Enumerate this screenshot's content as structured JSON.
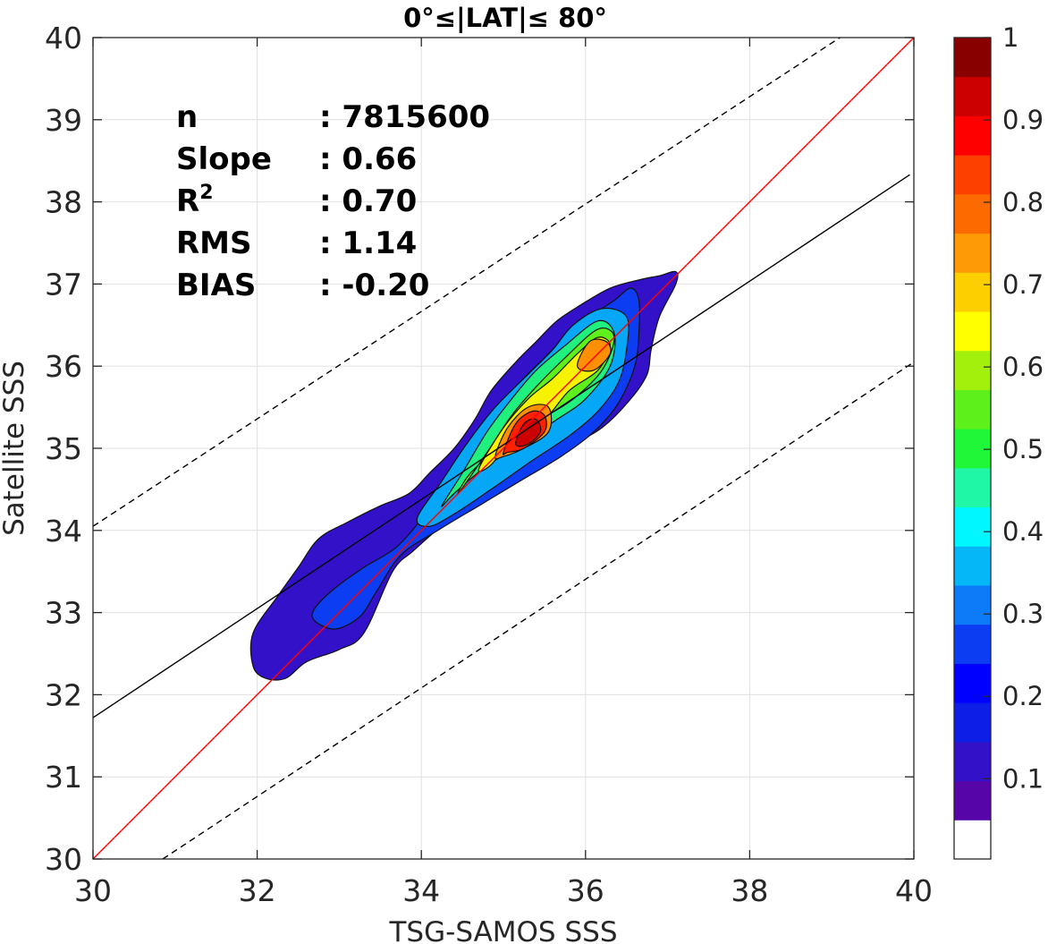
{
  "chart_data": {
    "type": "contour",
    "title": "0°≤|LAT|≤ 80°",
    "xlabel": "TSG-SAMOS SSS",
    "ylabel": "Satellite SSS",
    "xlim": [
      30,
      40
    ],
    "ylim": [
      30,
      40
    ],
    "xticks": [
      "30",
      "32",
      "34",
      "36",
      "38",
      "40"
    ],
    "yticks": [
      "30",
      "31",
      "32",
      "33",
      "34",
      "35",
      "36",
      "37",
      "38",
      "39",
      "40"
    ],
    "grid": true,
    "stats": [
      {
        "label": "n",
        "value": ": 7815600"
      },
      {
        "label": "Slope",
        "value": ": 0.66"
      },
      {
        "label": "R",
        "sup": "2",
        "value": ": 0.70"
      },
      {
        "label": "RMS",
        "value": ": 1.14"
      },
      {
        "label": "BIAS",
        "value": ": -0.20"
      }
    ],
    "lines": {
      "one_to_one": {
        "x": [
          30,
          40
        ],
        "y": [
          30,
          40
        ],
        "color": "#ff0000"
      },
      "fit": {
        "x": [
          30,
          39.95
        ],
        "y": [
          31.72,
          38.33
        ],
        "color": "#000000"
      },
      "plus_offset": {
        "x": [
          30,
          39.1
        ],
        "y": [
          34.05,
          40
        ],
        "color": "#000000",
        "style": "dashed"
      },
      "minus_offset": {
        "x": [
          30.85,
          40
        ],
        "y": [
          30,
          36.05
        ],
        "color": "#000000",
        "style": "dashed"
      }
    },
    "contour_levels": [
      {
        "level": 0.05,
        "color": "#3211c8",
        "points": [
          [
            31.95,
            32.35
          ],
          [
            31.95,
            32.75
          ],
          [
            32.25,
            33.2
          ],
          [
            32.5,
            33.55
          ],
          [
            32.75,
            33.9
          ],
          [
            33.1,
            34.1
          ],
          [
            33.5,
            34.3
          ],
          [
            33.85,
            34.45
          ],
          [
            34.1,
            34.7
          ],
          [
            34.4,
            35.0
          ],
          [
            34.65,
            35.35
          ],
          [
            34.85,
            35.7
          ],
          [
            35.15,
            36.05
          ],
          [
            35.4,
            36.3
          ],
          [
            35.65,
            36.55
          ],
          [
            35.95,
            36.75
          ],
          [
            36.3,
            36.95
          ],
          [
            36.65,
            37.05
          ],
          [
            36.9,
            37.1
          ],
          [
            37.1,
            37.15
          ],
          [
            37.1,
            37.0
          ],
          [
            36.9,
            36.6
          ],
          [
            36.8,
            36.2
          ],
          [
            36.75,
            35.9
          ],
          [
            36.55,
            35.6
          ],
          [
            36.2,
            35.25
          ],
          [
            35.75,
            35.0
          ],
          [
            35.25,
            34.75
          ],
          [
            34.75,
            34.45
          ],
          [
            34.3,
            34.1
          ],
          [
            33.9,
            33.75
          ],
          [
            33.65,
            33.5
          ],
          [
            33.3,
            32.75
          ],
          [
            33.0,
            32.55
          ],
          [
            32.6,
            32.4
          ],
          [
            32.35,
            32.2
          ],
          [
            32.1,
            32.2
          ]
        ]
      },
      {
        "level": 0.15,
        "color": "#0d3df2",
        "points": [
          [
            32.7,
            33.05
          ],
          [
            32.95,
            33.3
          ],
          [
            33.3,
            33.55
          ],
          [
            33.7,
            33.8
          ],
          [
            34.05,
            34.2
          ],
          [
            34.35,
            34.6
          ],
          [
            34.6,
            34.95
          ],
          [
            34.9,
            35.4
          ],
          [
            35.2,
            35.8
          ],
          [
            35.5,
            36.1
          ],
          [
            35.8,
            36.4
          ],
          [
            36.05,
            36.6
          ],
          [
            36.35,
            36.8
          ],
          [
            36.55,
            36.95
          ],
          [
            36.65,
            36.8
          ],
          [
            36.65,
            36.4
          ],
          [
            36.6,
            36.0
          ],
          [
            36.4,
            35.55
          ],
          [
            36.1,
            35.2
          ],
          [
            35.7,
            34.9
          ],
          [
            35.2,
            34.6
          ],
          [
            34.7,
            34.3
          ],
          [
            34.2,
            34.0
          ],
          [
            33.75,
            33.7
          ],
          [
            33.45,
            33.25
          ],
          [
            33.25,
            32.95
          ],
          [
            32.95,
            32.8
          ],
          [
            32.7,
            32.9
          ]
        ]
      },
      {
        "level": 0.3,
        "color": "#06a7f7",
        "points": [
          [
            33.95,
            34.15
          ],
          [
            34.25,
            34.6
          ],
          [
            34.55,
            35.05
          ],
          [
            34.9,
            35.5
          ],
          [
            35.3,
            35.9
          ],
          [
            35.6,
            36.2
          ],
          [
            35.85,
            36.5
          ],
          [
            36.2,
            36.7
          ],
          [
            36.5,
            36.6
          ],
          [
            36.5,
            36.2
          ],
          [
            36.4,
            35.8
          ],
          [
            36.15,
            35.45
          ],
          [
            35.8,
            35.15
          ],
          [
            35.35,
            34.85
          ],
          [
            34.85,
            34.5
          ],
          [
            34.4,
            34.2
          ],
          [
            34.1,
            34.05
          ]
        ]
      },
      {
        "level": 0.45,
        "color": "#1ff07e",
        "points": [
          [
            34.25,
            34.3
          ],
          [
            34.5,
            34.7
          ],
          [
            34.8,
            35.2
          ],
          [
            35.1,
            35.6
          ],
          [
            35.4,
            35.95
          ],
          [
            35.75,
            36.25
          ],
          [
            36.15,
            36.55
          ],
          [
            36.35,
            36.4
          ],
          [
            36.3,
            36.0
          ],
          [
            36.0,
            35.6
          ],
          [
            35.65,
            35.35
          ],
          [
            35.2,
            35.05
          ],
          [
            34.75,
            34.75
          ],
          [
            34.4,
            34.45
          ]
        ]
      },
      {
        "level": 0.55,
        "color": "#5df01a",
        "points": [
          [
            34.45,
            34.45
          ],
          [
            34.8,
            34.95
          ],
          [
            35.1,
            35.4
          ],
          [
            35.4,
            35.75
          ],
          [
            35.75,
            36.1
          ],
          [
            36.15,
            36.45
          ],
          [
            36.35,
            36.35
          ],
          [
            36.2,
            35.95
          ],
          [
            35.85,
            35.6
          ],
          [
            35.45,
            35.35
          ],
          [
            35.0,
            35.05
          ],
          [
            34.6,
            34.7
          ]
        ]
      },
      {
        "level": 0.65,
        "color": "#f6f200",
        "points": [
          [
            34.7,
            34.75
          ],
          [
            35.0,
            35.25
          ],
          [
            35.3,
            35.6
          ],
          [
            35.6,
            35.85
          ],
          [
            35.9,
            36.15
          ],
          [
            36.15,
            36.35
          ],
          [
            36.3,
            36.25
          ],
          [
            36.15,
            35.95
          ],
          [
            35.8,
            35.7
          ],
          [
            35.5,
            35.35
          ],
          [
            35.1,
            35.1
          ],
          [
            34.85,
            34.8
          ]
        ]
      },
      {
        "level": 0.75,
        "color": "#fd8f05",
        "points": [
          [
            34.9,
            34.9
          ],
          [
            35.05,
            35.25
          ],
          [
            35.3,
            35.5
          ],
          [
            35.55,
            35.5
          ],
          [
            35.55,
            35.2
          ],
          [
            35.25,
            35.0
          ],
          [
            35.0,
            34.9
          ]
        ]
      },
      {
        "level": 0.75,
        "color": "#fd8f05",
        "points": [
          [
            35.9,
            36.0
          ],
          [
            36.05,
            36.3
          ],
          [
            36.25,
            36.3
          ],
          [
            36.3,
            36.15
          ],
          [
            36.1,
            35.95
          ]
        ]
      },
      {
        "level": 0.85,
        "color": "#ff2000",
        "points": [
          [
            35.0,
            34.95
          ],
          [
            35.15,
            35.3
          ],
          [
            35.35,
            35.45
          ],
          [
            35.5,
            35.4
          ],
          [
            35.5,
            35.2
          ],
          [
            35.25,
            35.0
          ],
          [
            35.05,
            34.95
          ]
        ]
      },
      {
        "level": 0.92,
        "color": "#cc0000",
        "points": [
          [
            35.15,
            35.05
          ],
          [
            35.25,
            35.3
          ],
          [
            35.4,
            35.35
          ],
          [
            35.45,
            35.2
          ],
          [
            35.3,
            35.05
          ]
        ]
      }
    ],
    "colorbar": {
      "ticks": [
        "0.1",
        "0.2",
        "0.3",
        "0.4",
        "0.5",
        "0.6",
        "0.7",
        "0.8",
        "0.9",
        "1"
      ],
      "colors": [
        "#ffffff",
        "#5606a8",
        "#3211c8",
        "#0d1ee6",
        "#0000ff",
        "#0d3df2",
        "#0d7af8",
        "#06b7f7",
        "#00f7ff",
        "#1ff7a7",
        "#1ff738",
        "#5df01a",
        "#a2f00c",
        "#ffff00",
        "#fdce00",
        "#fd9a05",
        "#fd6b00",
        "#fd4000",
        "#ff0000",
        "#cc0000",
        "#880000"
      ]
    }
  }
}
